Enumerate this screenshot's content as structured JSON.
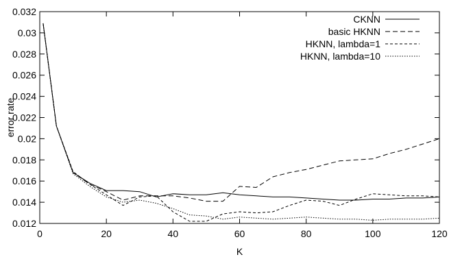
{
  "chart_data": {
    "type": "line",
    "title": "",
    "xlabel": "K",
    "ylabel": "error rate",
    "xlim": [
      0,
      120
    ],
    "ylim": [
      0.012,
      0.032
    ],
    "xticks": [
      0,
      20,
      40,
      60,
      80,
      100,
      120
    ],
    "xtick_labels": [
      "0",
      "20",
      "40",
      "60",
      "80",
      "100",
      "120"
    ],
    "yticks": [
      0.012,
      0.014,
      0.016,
      0.018,
      0.02,
      0.022,
      0.024,
      0.026,
      0.028,
      0.03,
      0.032
    ],
    "ytick_labels": [
      "0.012",
      "0.014",
      "0.016",
      "0.018",
      "0.02",
      "0.022",
      "0.024",
      "0.026",
      "0.028",
      "0.03",
      "0.032"
    ],
    "grid": false,
    "legend_position": "top-right",
    "series": [
      {
        "name": "CKNN",
        "dash": "solid",
        "color": "#000000",
        "x": [
          1,
          5,
          10,
          15,
          20,
          25,
          30,
          35,
          40,
          45,
          50,
          55,
          60,
          65,
          70,
          75,
          80,
          85,
          90,
          95,
          100,
          105,
          110,
          115,
          120
        ],
        "y": [
          0.0309,
          0.0212,
          0.0168,
          0.0158,
          0.0151,
          0.0151,
          0.015,
          0.0145,
          0.0148,
          0.0147,
          0.0147,
          0.0149,
          0.0147,
          0.0146,
          0.0145,
          0.0145,
          0.0144,
          0.0143,
          0.0142,
          0.0142,
          0.0143,
          0.0143,
          0.0144,
          0.0144,
          0.0145
        ]
      },
      {
        "name": "basic HKNN",
        "dash": "dashed",
        "color": "#000000",
        "x": [
          1,
          5,
          10,
          15,
          20,
          25,
          30,
          35,
          40,
          45,
          50,
          55,
          60,
          65,
          70,
          75,
          80,
          85,
          90,
          95,
          100,
          105,
          110,
          115,
          120
        ],
        "y": [
          0.0309,
          0.0212,
          0.0168,
          0.0157,
          0.015,
          0.0142,
          0.0146,
          0.0146,
          0.0146,
          0.0144,
          0.0141,
          0.0141,
          0.0155,
          0.0154,
          0.0164,
          0.0168,
          0.0171,
          0.0175,
          0.0179,
          0.018,
          0.0181,
          0.0186,
          0.019,
          0.0195,
          0.02
        ]
      },
      {
        "name": "HKNN, lambda=1",
        "dash": "short-dash",
        "color": "#000000",
        "x": [
          1,
          5,
          10,
          15,
          20,
          25,
          30,
          35,
          40,
          45,
          50,
          55,
          60,
          65,
          70,
          75,
          80,
          85,
          90,
          95,
          100,
          105,
          110,
          115,
          120
        ],
        "y": [
          0.0309,
          0.0212,
          0.0169,
          0.0157,
          0.0147,
          0.0137,
          0.0145,
          0.0146,
          0.0131,
          0.0122,
          0.0122,
          0.0129,
          0.0131,
          0.013,
          0.0131,
          0.0137,
          0.0142,
          0.0141,
          0.0137,
          0.0143,
          0.0148,
          0.0147,
          0.0146,
          0.0146,
          0.0145
        ]
      },
      {
        "name": "HKNN, lambda=10",
        "dash": "dotted",
        "color": "#000000",
        "x": [
          1,
          5,
          10,
          15,
          20,
          25,
          30,
          35,
          40,
          45,
          50,
          55,
          60,
          65,
          70,
          75,
          80,
          85,
          90,
          95,
          100,
          105,
          110,
          115,
          120
        ],
        "y": [
          0.0309,
          0.0212,
          0.0167,
          0.0155,
          0.0145,
          0.014,
          0.0142,
          0.0139,
          0.0134,
          0.0128,
          0.0127,
          0.0124,
          0.0126,
          0.0125,
          0.0124,
          0.0125,
          0.0126,
          0.0125,
          0.0124,
          0.0124,
          0.0123,
          0.0124,
          0.0124,
          0.0124,
          0.0125
        ]
      }
    ]
  }
}
